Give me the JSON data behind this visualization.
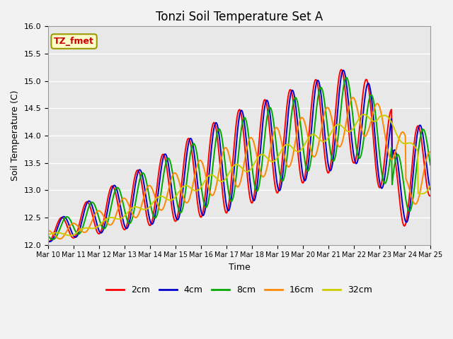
{
  "title": "Tonzi Soil Temperature Set A",
  "xlabel": "Time",
  "ylabel": "Soil Temperature (C)",
  "ylim": [
    12.0,
    16.0
  ],
  "yticks": [
    12.0,
    12.5,
    13.0,
    13.5,
    14.0,
    14.5,
    15.0,
    15.5,
    16.0
  ],
  "xtick_labels": [
    "Mar 10",
    "Mar 11",
    "Mar 12",
    "Mar 13",
    "Mar 14",
    "Mar 15",
    "Mar 16",
    "Mar 17",
    "Mar 18",
    "Mar 19",
    "Mar 20",
    "Mar 21",
    "Mar 22",
    "Mar 23",
    "Mar 24",
    "Mar 25"
  ],
  "series_colors": [
    "#ff0000",
    "#0000cc",
    "#00aa00",
    "#ff8800",
    "#cccc00"
  ],
  "series_labels": [
    "2cm",
    "4cm",
    "8cm",
    "16cm",
    "32cm"
  ],
  "annotation_text": "TZ_fmet",
  "annotation_color": "#cc0000",
  "annotation_bg": "#ffffcc",
  "plot_bg": "#e8e8e8",
  "fig_bg": "#f2f2f2",
  "grid_color": "#ffffff",
  "title_fontsize": 12,
  "axis_fontsize": 9,
  "tick_fontsize": 8,
  "legend_fontsize": 9,
  "linewidth": 1.4
}
